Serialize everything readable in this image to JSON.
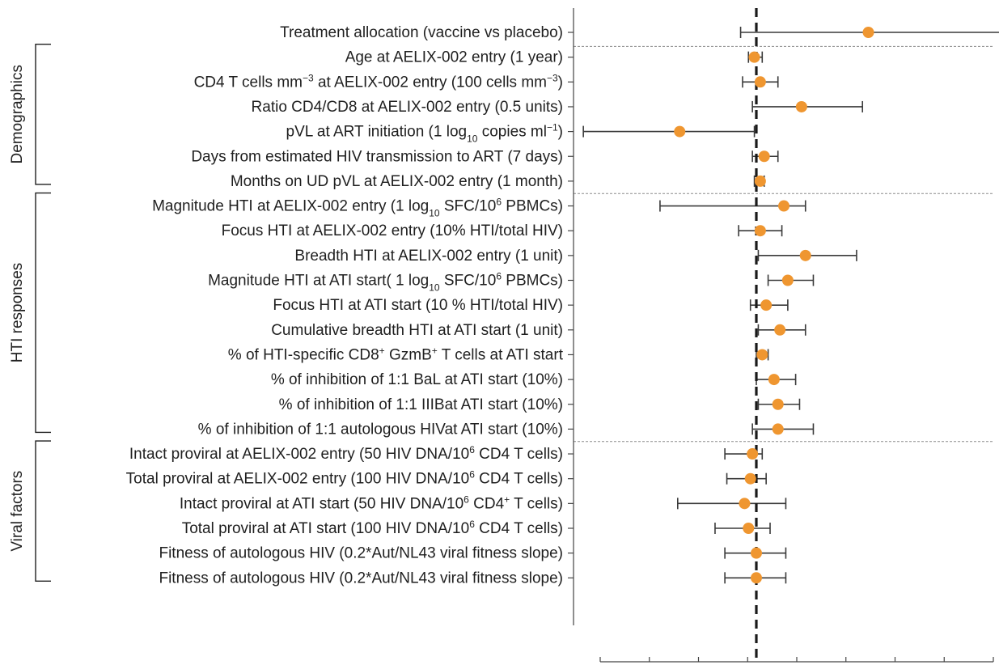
{
  "chart_data": {
    "type": "forest",
    "reference_value": 0,
    "x_axis": {
      "range": [
        -1,
        1
      ],
      "tick_labels": [],
      "ticks": [
        -1,
        -0.75,
        -0.5,
        -0.25,
        0,
        0.25,
        0.5,
        0.75,
        1
      ]
    },
    "colors": {
      "point": "#ef9630",
      "interval": "#3a3a3a",
      "reference": "#1a1a1a"
    },
    "rows": [
      {
        "group": "",
        "parts": [
          {
            "t": "Treatment allocation (vaccine vs placebo)"
          }
        ],
        "estimate": 0.57,
        "lower": -0.08,
        "upper": 1.37
      },
      {
        "group": "Demographics",
        "parts": [
          {
            "t": "Age at AELIX-002 entry (1 year)"
          }
        ],
        "estimate": -0.01,
        "lower": -0.04,
        "upper": 0.03
      },
      {
        "group": "Demographics",
        "parts": [
          {
            "t": "CD4 T cells mm"
          },
          {
            "t": "−3",
            "s": "sup"
          },
          {
            "t": " at AELIX-002 entry (100 cells mm"
          },
          {
            "t": "−3",
            "s": "sup"
          },
          {
            "t": ")"
          }
        ],
        "estimate": 0.02,
        "lower": -0.07,
        "upper": 0.11
      },
      {
        "group": "Demographics",
        "parts": [
          {
            "t": "Ratio CD4/CD8 at AELIX-002 entry (0.5 units)"
          }
        ],
        "estimate": 0.23,
        "lower": -0.02,
        "upper": 0.54
      },
      {
        "group": "Demographics",
        "parts": [
          {
            "t": "pVL at ART initiation (1 log"
          },
          {
            "t": "10",
            "s": "sub"
          },
          {
            "t": " copies ml"
          },
          {
            "t": "−1",
            "s": "sup"
          },
          {
            "t": ")"
          }
        ],
        "estimate": -0.39,
        "lower": -0.88,
        "upper": -0.01
      },
      {
        "group": "Demographics",
        "parts": [
          {
            "t": "Days from estimated HIV transmission to ART (7 days)"
          }
        ],
        "estimate": 0.04,
        "lower": -0.02,
        "upper": 0.11
      },
      {
        "group": "Demographics",
        "parts": [
          {
            "t": "Months on UD pVL at AELIX-002 entry (1 month)"
          }
        ],
        "estimate": 0.02,
        "lower": -0.01,
        "upper": 0.04
      },
      {
        "group": "HTI responses",
        "parts": [
          {
            "t": "Magnitude HTI at AELIX-002 entry (1 log"
          },
          {
            "t": "10",
            "s": "sub"
          },
          {
            "t": " SFC/10"
          },
          {
            "t": "6",
            "s": "sup"
          },
          {
            "t": " PBMCs)"
          }
        ],
        "estimate": 0.14,
        "lower": -0.49,
        "upper": 0.25
      },
      {
        "group": "HTI responses",
        "parts": [
          {
            "t": "Focus HTI at AELIX-002 entry (10% HTI/total HIV)"
          }
        ],
        "estimate": 0.02,
        "lower": -0.09,
        "upper": 0.13
      },
      {
        "group": "HTI responses",
        "parts": [
          {
            "t": "Breadth HTI at AELIX-002 entry (1 unit)"
          }
        ],
        "estimate": 0.25,
        "lower": 0.01,
        "upper": 0.51
      },
      {
        "group": "HTI responses",
        "parts": [
          {
            "t": "Magnitude HTI at ATI start( 1 log"
          },
          {
            "t": "10",
            "s": "sub"
          },
          {
            "t": " SFC/10"
          },
          {
            "t": "6",
            "s": "sup"
          },
          {
            "t": " PBMCs)"
          }
        ],
        "estimate": 0.16,
        "lower": 0.06,
        "upper": 0.29
      },
      {
        "group": "HTI responses",
        "parts": [
          {
            "t": "Focus HTI at ATI start (10 % HTI/total HIV)"
          }
        ],
        "estimate": 0.05,
        "lower": -0.03,
        "upper": 0.16
      },
      {
        "group": "HTI responses",
        "parts": [
          {
            "t": "Cumulative breadth HTI at ATI start (1 unit)"
          }
        ],
        "estimate": 0.12,
        "lower": 0.01,
        "upper": 0.25
      },
      {
        "group": "HTI responses",
        "parts": [
          {
            "t": "% of HTI-specific CD8"
          },
          {
            "t": "+",
            "s": "sup"
          },
          {
            "t": " GzmB"
          },
          {
            "t": "+",
            "s": "sup"
          },
          {
            "t": " T cells at ATI start"
          }
        ],
        "estimate": 0.03,
        "lower": 0.0,
        "upper": 0.06
      },
      {
        "group": "HTI responses",
        "parts": [
          {
            "t": "% of inhibition of 1:1 BaL at ATI start (10%)"
          }
        ],
        "estimate": 0.09,
        "lower": 0.0,
        "upper": 0.2
      },
      {
        "group": "HTI responses",
        "parts": [
          {
            "t": "% of inhibition of 1:1 IIIBat ATI start (10%)"
          }
        ],
        "estimate": 0.11,
        "lower": 0.01,
        "upper": 0.22
      },
      {
        "group": "HTI responses",
        "parts": [
          {
            "t": "% of inhibition of 1:1 autologous HIVat ATI start (10%)"
          }
        ],
        "estimate": 0.11,
        "lower": -0.02,
        "upper": 0.29
      },
      {
        "group": "Viral factors",
        "parts": [
          {
            "t": "Intact proviral at AELIX-002 entry (50 HIV DNA/10"
          },
          {
            "t": "6",
            "s": "sup"
          },
          {
            "t": " CD4 T cells)"
          }
        ],
        "estimate": -0.02,
        "lower": -0.16,
        "upper": 0.03
      },
      {
        "group": "Viral factors",
        "parts": [
          {
            "t": "Total proviral at AELIX-002 entry (100 HIV DNA/10"
          },
          {
            "t": "6",
            "s": "sup"
          },
          {
            "t": " CD4 T cells)"
          }
        ],
        "estimate": -0.03,
        "lower": -0.15,
        "upper": 0.05
      },
      {
        "group": "Viral factors",
        "parts": [
          {
            "t": "Intact proviral at ATI start (50 HIV DNA/10"
          },
          {
            "t": "6",
            "s": "sup"
          },
          {
            "t": " CD4"
          },
          {
            "t": "+",
            "s": "sup"
          },
          {
            "t": " T cells)"
          }
        ],
        "estimate": -0.06,
        "lower": -0.4,
        "upper": 0.15
      },
      {
        "group": "Viral factors",
        "parts": [
          {
            "t": "Total proviral at ATI start (100 HIV DNA/10"
          },
          {
            "t": "6",
            "s": "sup"
          },
          {
            "t": " CD4 T cells)"
          }
        ],
        "estimate": -0.04,
        "lower": -0.21,
        "upper": 0.07
      },
      {
        "group": "Viral factors",
        "parts": [
          {
            "t": "Fitness of autologous HIV (0.2*Aut/NL43 viral fitness slope)"
          }
        ],
        "estimate": 0.0,
        "lower": -0.16,
        "upper": 0.15
      },
      {
        "group": "Viral factors",
        "parts": [
          {
            "t": "Fitness of autologous HIV (0.2*Aut/NL43 viral fitness slope)"
          }
        ],
        "estimate": 0.0,
        "lower": -0.16,
        "upper": 0.15
      }
    ],
    "groups": [
      "Demographics",
      "HTI responses",
      "Viral factors"
    ]
  }
}
